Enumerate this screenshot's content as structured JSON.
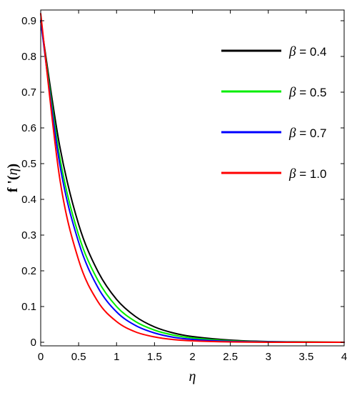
{
  "chart_data": {
    "type": "line",
    "title": "",
    "xlabel": "η",
    "ylabel_prefix": "f '(",
    "ylabel_var": "η",
    "ylabel_suffix": ")",
    "xlim": [
      0,
      4
    ],
    "ylim": [
      -0.01,
      0.93
    ],
    "x_ticks": [
      0,
      0.5,
      1,
      1.5,
      2,
      2.5,
      3,
      3.5,
      4
    ],
    "x_tick_labels": [
      "0",
      "0.5",
      "1",
      "1.5",
      "2",
      "2.5",
      "3",
      "3.5",
      "4"
    ],
    "y_ticks": [
      0,
      0.1,
      0.2,
      0.3,
      0.4,
      0.5,
      0.6,
      0.7,
      0.8,
      0.9
    ],
    "y_tick_labels": [
      "0",
      "0.1",
      "0.2",
      "0.3",
      "0.4",
      "0.5",
      "0.6",
      "0.7",
      "0.8",
      "0.9"
    ],
    "grid": false,
    "legend_position": "top-right",
    "legend_symbol": "β",
    "x": [
      0,
      0.25,
      0.5,
      0.75,
      1.0,
      1.25,
      1.5,
      1.75,
      2.0,
      2.5,
      3.0,
      3.5,
      4.0
    ],
    "series": [
      {
        "name": "= 0.4",
        "color": "#000000",
        "values": [
          0.9,
          0.55,
          0.33,
          0.2,
          0.12,
          0.072,
          0.043,
          0.026,
          0.016,
          0.006,
          0.002,
          0.001,
          0.0
        ]
      },
      {
        "name": "= 0.5",
        "color": "#00ee00",
        "values": [
          0.9,
          0.52,
          0.3,
          0.175,
          0.1,
          0.058,
          0.034,
          0.02,
          0.012,
          0.004,
          0.0015,
          0.0005,
          0.0
        ]
      },
      {
        "name": "= 0.7",
        "color": "#0000ff",
        "values": [
          0.9,
          0.5,
          0.28,
          0.155,
          0.085,
          0.047,
          0.026,
          0.014,
          0.008,
          0.0025,
          0.001,
          0.0,
          0.0
        ]
      },
      {
        "name": "= 1.0",
        "color": "#ff0000",
        "values": [
          0.92,
          0.46,
          0.23,
          0.115,
          0.058,
          0.029,
          0.015,
          0.0075,
          0.004,
          0.001,
          0.0,
          0.0,
          0.0
        ]
      }
    ]
  }
}
